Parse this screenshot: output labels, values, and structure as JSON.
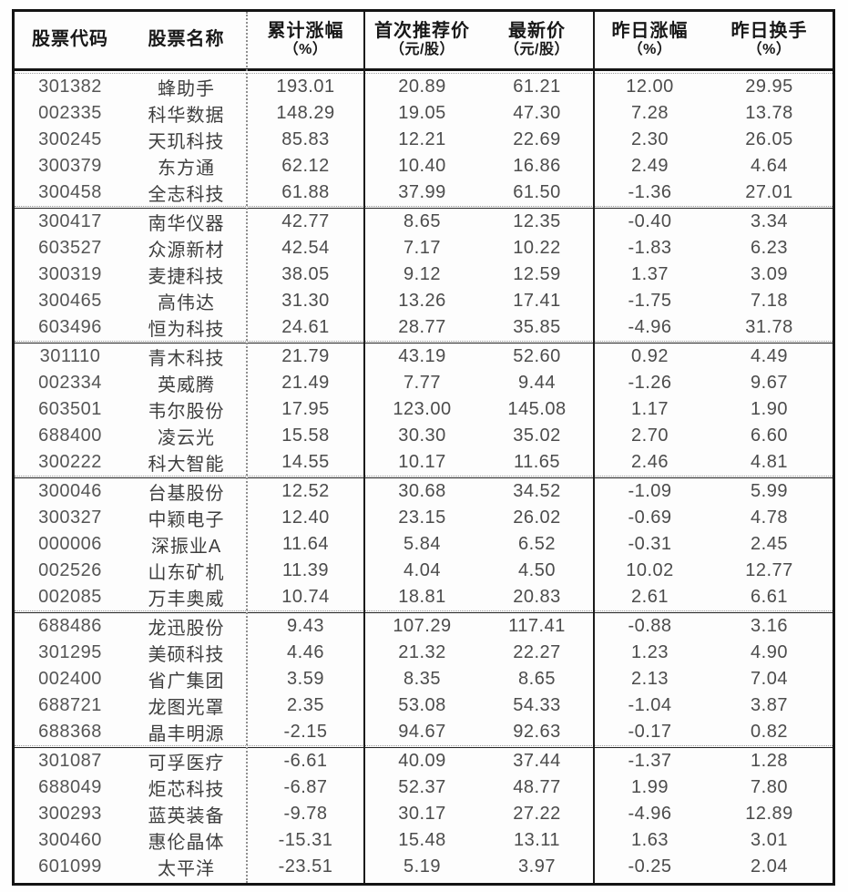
{
  "table": {
    "columns": [
      {
        "key": "code",
        "title": "股票代码",
        "subtitle": ""
      },
      {
        "key": "name",
        "title": "股票名称",
        "subtitle": ""
      },
      {
        "key": "cumulative_gain_pct",
        "title": "累计涨幅",
        "subtitle": "（%）"
      },
      {
        "key": "first_rec_price",
        "title": "首次推荐价",
        "subtitle": "（元/股）"
      },
      {
        "key": "latest_price",
        "title": "最新价",
        "subtitle": "（元/股）"
      },
      {
        "key": "yesterday_gain_pct",
        "title": "昨日涨幅",
        "subtitle": "（%）"
      },
      {
        "key": "yesterday_turnover_pct",
        "title": "昨日换手",
        "subtitle": "（%）"
      }
    ],
    "groups": [
      [
        [
          "301382",
          "蜂助手",
          "193.01",
          "20.89",
          "61.21",
          "12.00",
          "29.95"
        ],
        [
          "002335",
          "科华数据",
          "148.29",
          "19.05",
          "47.30",
          "7.28",
          "13.78"
        ],
        [
          "300245",
          "天玑科技",
          "85.83",
          "12.21",
          "22.69",
          "2.30",
          "26.05"
        ],
        [
          "300379",
          "东方通",
          "62.12",
          "10.40",
          "16.86",
          "2.49",
          "4.64"
        ],
        [
          "300458",
          "全志科技",
          "61.88",
          "37.99",
          "61.50",
          "-1.36",
          "27.01"
        ]
      ],
      [
        [
          "300417",
          "南华仪器",
          "42.77",
          "8.65",
          "12.35",
          "-0.40",
          "3.34"
        ],
        [
          "603527",
          "众源新材",
          "42.54",
          "7.17",
          "10.22",
          "-1.83",
          "6.23"
        ],
        [
          "300319",
          "麦捷科技",
          "38.05",
          "9.12",
          "12.59",
          "1.37",
          "3.09"
        ],
        [
          "300465",
          "高伟达",
          "31.30",
          "13.26",
          "17.41",
          "-1.75",
          "7.18"
        ],
        [
          "603496",
          "恒为科技",
          "24.61",
          "28.77",
          "35.85",
          "-4.96",
          "31.78"
        ]
      ],
      [
        [
          "301110",
          "青木科技",
          "21.79",
          "43.19",
          "52.60",
          "0.92",
          "4.49"
        ],
        [
          "002334",
          "英威腾",
          "21.49",
          "7.77",
          "9.44",
          "-1.26",
          "9.67"
        ],
        [
          "603501",
          "韦尔股份",
          "17.95",
          "123.00",
          "145.08",
          "1.17",
          "1.90"
        ],
        [
          "688400",
          "凌云光",
          "15.58",
          "30.30",
          "35.02",
          "2.70",
          "6.60"
        ],
        [
          "300222",
          "科大智能",
          "14.55",
          "10.17",
          "11.65",
          "2.46",
          "4.81"
        ]
      ],
      [
        [
          "300046",
          "台基股份",
          "12.52",
          "30.68",
          "34.52",
          "-1.09",
          "5.99"
        ],
        [
          "300327",
          "中颖电子",
          "12.40",
          "23.15",
          "26.02",
          "-0.69",
          "4.78"
        ],
        [
          "000006",
          "深振业A",
          "11.64",
          "5.84",
          "6.52",
          "-0.31",
          "2.45"
        ],
        [
          "002526",
          "山东矿机",
          "11.39",
          "4.04",
          "4.50",
          "10.02",
          "12.77"
        ],
        [
          "002085",
          "万丰奥威",
          "10.74",
          "18.81",
          "20.83",
          "2.61",
          "6.61"
        ]
      ],
      [
        [
          "688486",
          "龙迅股份",
          "9.43",
          "107.29",
          "117.41",
          "-0.88",
          "3.16"
        ],
        [
          "301295",
          "美硕科技",
          "4.46",
          "21.32",
          "22.27",
          "1.23",
          "4.90"
        ],
        [
          "002400",
          "省广集团",
          "3.59",
          "8.35",
          "8.65",
          "2.13",
          "7.04"
        ],
        [
          "688721",
          "龙图光罩",
          "2.35",
          "53.08",
          "54.33",
          "-1.04",
          "3.87"
        ],
        [
          "688368",
          "晶丰明源",
          "-2.15",
          "94.67",
          "92.63",
          "-0.17",
          "0.82"
        ]
      ],
      [
        [
          "301087",
          "可孚医疗",
          "-6.61",
          "40.09",
          "37.44",
          "-1.37",
          "1.28"
        ],
        [
          "688049",
          "炬芯科技",
          "-6.87",
          "52.37",
          "48.77",
          "1.99",
          "7.80"
        ],
        [
          "300293",
          "蓝英装备",
          "-9.78",
          "30.17",
          "27.22",
          "-4.96",
          "12.89"
        ],
        [
          "300460",
          "惠伦晶体",
          "-15.31",
          "15.48",
          "13.11",
          "1.63",
          "3.01"
        ],
        [
          "601099",
          "太平洋",
          "-23.51",
          "5.19",
          "3.97",
          "-0.25",
          "2.04"
        ]
      ]
    ]
  }
}
